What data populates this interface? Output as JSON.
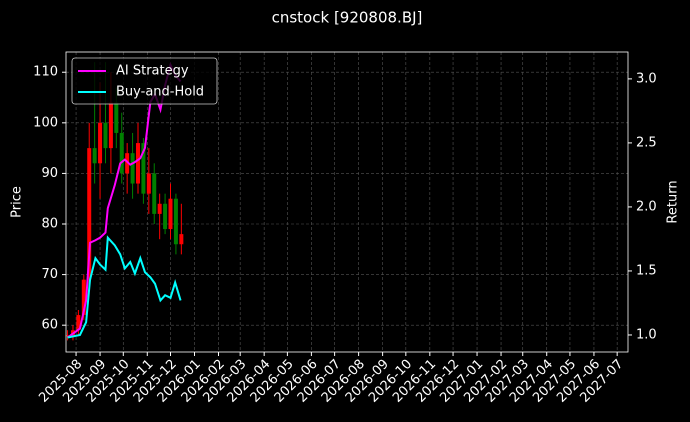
{
  "chart_data": {
    "type": "candlestick",
    "title": "cnstock [920808.BJ]",
    "ylabel": "Price",
    "y2label": "Return",
    "x": [
      "2025-07-21",
      "2025-07-28",
      "2025-08-04",
      "2025-08-11",
      "2025-08-18",
      "2025-08-25",
      "2025-09-01",
      "2025-09-08",
      "2025-09-15",
      "2025-09-22",
      "2025-09-29",
      "2025-10-06",
      "2025-10-13",
      "2025-10-20",
      "2025-10-27",
      "2025-11-03",
      "2025-11-10",
      "2025-11-17",
      "2025-11-24",
      "2025-12-01",
      "2025-12-08",
      "2025-12-15"
    ],
    "open": [
      58,
      58,
      59,
      62,
      69,
      95,
      92,
      100,
      95,
      104,
      98,
      90,
      94,
      88,
      96,
      86,
      90,
      82,
      84,
      79,
      85,
      76
    ],
    "high": [
      59,
      60,
      63,
      70,
      100,
      112,
      108,
      112,
      110,
      107,
      102,
      96,
      98,
      100,
      97,
      95,
      92,
      86,
      86,
      88,
      86,
      84
    ],
    "low": [
      57,
      57,
      58,
      61,
      68,
      88,
      85,
      92,
      90,
      95,
      88,
      86,
      85,
      86,
      84,
      82,
      80,
      77,
      78,
      77,
      74,
      74
    ],
    "close": [
      58,
      59,
      62,
      69,
      95,
      92,
      100,
      95,
      104,
      98,
      90,
      94,
      88,
      96,
      86,
      90,
      82,
      84,
      79,
      85,
      76,
      78
    ],
    "up_color": "#ff0000",
    "down_color": "#008000",
    "series": [
      {
        "name": "AI Strategy",
        "color": "#ff00ff",
        "axis": "y2",
        "x": [
          "2025-07-21",
          "2025-08-06",
          "2025-08-14",
          "2025-08-19",
          "2025-08-26",
          "2025-09-01",
          "2025-09-08",
          "2025-09-11",
          "2025-09-20",
          "2025-09-27",
          "2025-10-03",
          "2025-10-10",
          "2025-10-16",
          "2025-10-23",
          "2025-10-29",
          "2025-11-05",
          "2025-11-11",
          "2025-11-18",
          "2025-11-24",
          "2025-12-01",
          "2025-12-07",
          "2025-12-14"
        ],
        "values": [
          0.98,
          1.05,
          1.27,
          1.72,
          1.74,
          1.76,
          1.8,
          1.99,
          2.17,
          2.34,
          2.37,
          2.33,
          2.35,
          2.38,
          2.46,
          2.82,
          2.88,
          2.76,
          2.95,
          3.11,
          3.03,
          2.98
        ]
      },
      {
        "name": "Buy-and-Hold",
        "color": "#00ffff",
        "axis": "y2",
        "x": [
          "2025-07-21",
          "2025-08-06",
          "2025-08-14",
          "2025-08-19",
          "2025-08-26",
          "2025-09-01",
          "2025-09-08",
          "2025-09-11",
          "2025-09-20",
          "2025-09-27",
          "2025-10-03",
          "2025-10-10",
          "2025-10-16",
          "2025-10-23",
          "2025-10-29",
          "2025-11-05",
          "2025-11-11",
          "2025-11-18",
          "2025-11-24",
          "2025-12-01",
          "2025-12-07",
          "2025-12-14"
        ],
        "values": [
          0.98,
          1.0,
          1.1,
          1.43,
          1.6,
          1.55,
          1.51,
          1.76,
          1.7,
          1.63,
          1.52,
          1.57,
          1.48,
          1.6,
          1.49,
          1.45,
          1.4,
          1.27,
          1.31,
          1.29,
          1.41,
          1.27
        ]
      }
    ],
    "xlim": [
      "2025-07-19",
      "2027-07-15"
    ],
    "xticks": [
      {
        "value": "2025-08-01",
        "label": "2025-08"
      },
      {
        "value": "2025-09-01",
        "label": "2025-09"
      },
      {
        "value": "2025-10-01",
        "label": "2025-10"
      },
      {
        "value": "2025-11-01",
        "label": "2025-11"
      },
      {
        "value": "2025-12-01",
        "label": "2025-12"
      },
      {
        "value": "2026-01-01",
        "label": "2026-01"
      },
      {
        "value": "2026-02-01",
        "label": "2026-02"
      },
      {
        "value": "2026-03-01",
        "label": "2026-03"
      },
      {
        "value": "2026-04-01",
        "label": "2026-04"
      },
      {
        "value": "2026-05-01",
        "label": "2026-05"
      },
      {
        "value": "2026-06-01",
        "label": "2026-06"
      },
      {
        "value": "2026-07-01",
        "label": "2026-07"
      },
      {
        "value": "2026-08-01",
        "label": "2026-08"
      },
      {
        "value": "2026-09-01",
        "label": "2026-09"
      },
      {
        "value": "2026-10-01",
        "label": "2026-10"
      },
      {
        "value": "2026-11-01",
        "label": "2026-11"
      },
      {
        "value": "2026-12-01",
        "label": "2026-12"
      },
      {
        "value": "2027-01-01",
        "label": "2027-01"
      },
      {
        "value": "2027-02-01",
        "label": "2027-02"
      },
      {
        "value": "2027-03-01",
        "label": "2027-03"
      },
      {
        "value": "2027-04-01",
        "label": "2027-04"
      },
      {
        "value": "2027-05-01",
        "label": "2027-05"
      },
      {
        "value": "2027-06-01",
        "label": "2027-06"
      },
      {
        "value": "2027-07-01",
        "label": "2027-07"
      }
    ],
    "ylim": [
      54.7,
      114
    ],
    "yticks": [
      60,
      70,
      80,
      90,
      100,
      110
    ],
    "y2lim": [
      0.867,
      3.21
    ],
    "y2ticks": [
      {
        "value": 1,
        "label": "1.0"
      },
      1.5,
      {
        "value": 2,
        "label": "2.0"
      },
      2.5,
      {
        "value": 3,
        "label": "3.0"
      }
    ],
    "grid": true,
    "legend": "upper left"
  }
}
